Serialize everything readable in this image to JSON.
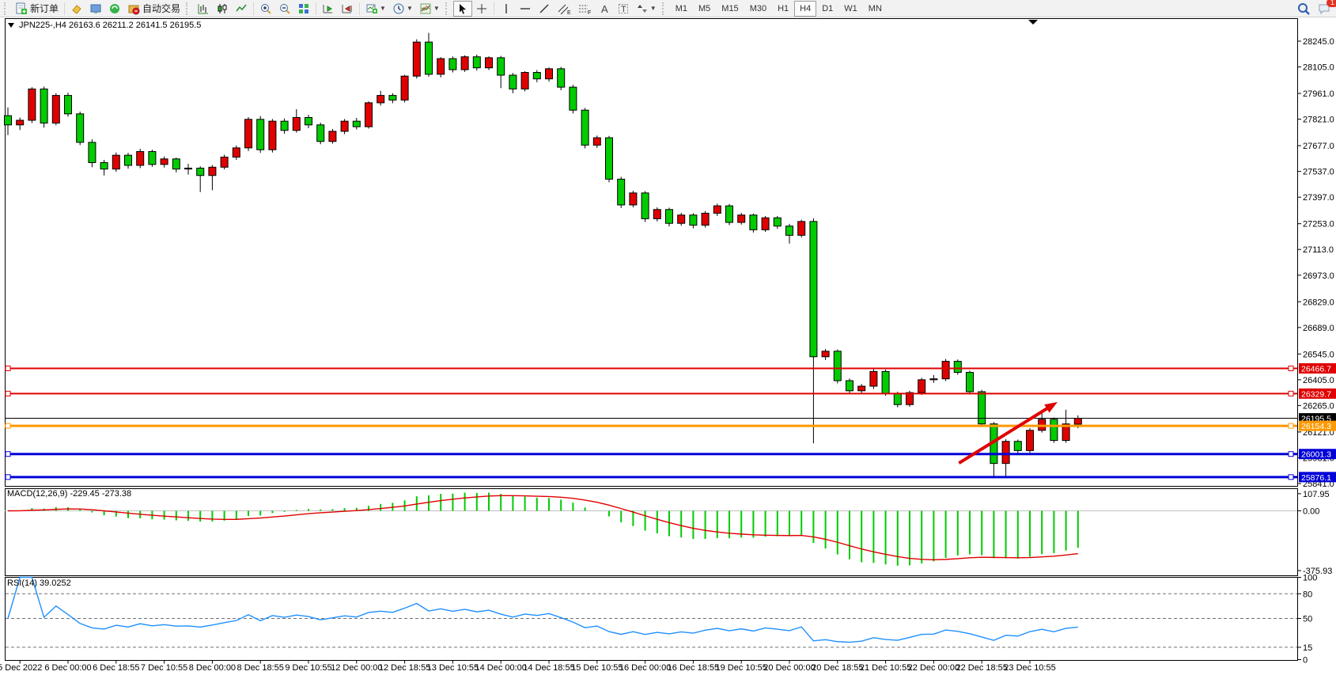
{
  "toolbar": {
    "new_order_label": "新订单",
    "autotrade_label": "自动交易",
    "timeframes": [
      "M1",
      "M5",
      "M15",
      "M30",
      "H1",
      "H4",
      "D1",
      "W1",
      "MN"
    ],
    "active_timeframe": "H4",
    "notification_badge": "1"
  },
  "chart_header": {
    "title_text": "JPN225-,H4  26163.6 26211.2 26141.5 26195.5"
  },
  "chart_data": {
    "type": "candlestick",
    "symbol": "JPN225-",
    "timeframe": "H4",
    "ohlc_display": {
      "open": "26163.6",
      "high": "26211.2",
      "low": "26141.5",
      "close": "26195.5"
    },
    "price_axis_ticks": [
      28245,
      28105,
      27961,
      27821,
      27677,
      27537,
      27397,
      27253,
      27113,
      26973,
      26829,
      26689,
      26545,
      26405,
      26265,
      26121,
      25981,
      25841
    ],
    "x_labels": {
      "labels": [
        "5 Dec 2022",
        "6 Dec 00:00",
        "6 Dec 18:55",
        "7 Dec 10:55",
        "8 Dec 00:00",
        "8 Dec 18:55",
        "9 Dec 10:55",
        "12 Dec 00:00",
        "12 Dec 18:55",
        "13 Dec 10:55",
        "14 Dec 00:00",
        "14 Dec 18:55",
        "15 Dec 10:55",
        "16 Dec 00:00",
        "16 Dec 18:55",
        "19 Dec 10:55",
        "20 Dec 00:00",
        "20 Dec 18:55",
        "21 Dec 10:55",
        "22 Dec 00:00",
        "22 Dec 18:55",
        "23 Dec 10:55"
      ],
      "first_candle_index": 1,
      "step": 4
    },
    "candles": [
      [
        27840,
        27885,
        27735,
        27790
      ],
      [
        27790,
        27830,
        27762,
        27815
      ],
      [
        27815,
        27995,
        27800,
        27985
      ],
      [
        27985,
        27998,
        27775,
        27800
      ],
      [
        27800,
        27962,
        27788,
        27950
      ],
      [
        27950,
        27965,
        27835,
        27850
      ],
      [
        27850,
        27862,
        27680,
        27695
      ],
      [
        27695,
        27712,
        27560,
        27585
      ],
      [
        27585,
        27600,
        27515,
        27550
      ],
      [
        27550,
        27640,
        27535,
        27625
      ],
      [
        27625,
        27638,
        27552,
        27570
      ],
      [
        27570,
        27660,
        27555,
        27645
      ],
      [
        27645,
        27655,
        27562,
        27575
      ],
      [
        27575,
        27618,
        27558,
        27605
      ],
      [
        27605,
        27612,
        27532,
        27550
      ],
      [
        27550,
        27578,
        27520,
        27555
      ],
      [
        27555,
        27565,
        27425,
        27515
      ],
      [
        27515,
        27572,
        27435,
        27560
      ],
      [
        27560,
        27628,
        27548,
        27615
      ],
      [
        27615,
        27678,
        27600,
        27665
      ],
      [
        27665,
        27832,
        27648,
        27820
      ],
      [
        27820,
        27838,
        27638,
        27655
      ],
      [
        27655,
        27822,
        27640,
        27810
      ],
      [
        27810,
        27825,
        27742,
        27760
      ],
      [
        27760,
        27875,
        27748,
        27830
      ],
      [
        27830,
        27845,
        27772,
        27790
      ],
      [
        27790,
        27802,
        27685,
        27700
      ],
      [
        27700,
        27768,
        27688,
        27755
      ],
      [
        27755,
        27822,
        27740,
        27810
      ],
      [
        27810,
        27828,
        27765,
        27780
      ],
      [
        27780,
        27918,
        27770,
        27910
      ],
      [
        27910,
        27975,
        27895,
        27950
      ],
      [
        27950,
        27962,
        27908,
        27925
      ],
      [
        27925,
        28062,
        27912,
        28055
      ],
      [
        28055,
        28255,
        28042,
        28240
      ],
      [
        28240,
        28290,
        28052,
        28065
      ],
      [
        28065,
        28158,
        28048,
        28150
      ],
      [
        28150,
        28162,
        28075,
        28090
      ],
      [
        28090,
        28168,
        28078,
        28160
      ],
      [
        28160,
        28172,
        28085,
        28100
      ],
      [
        28100,
        28162,
        28088,
        28155
      ],
      [
        28155,
        28165,
        27990,
        28060
      ],
      [
        28060,
        28072,
        27962,
        27985
      ],
      [
        27985,
        28082,
        27972,
        28075
      ],
      [
        28075,
        28088,
        28022,
        28040
      ],
      [
        28040,
        28102,
        28025,
        28095
      ],
      [
        28095,
        28105,
        27978,
        27995
      ],
      [
        27995,
        28008,
        27852,
        27870
      ],
      [
        27870,
        27882,
        27662,
        27680
      ],
      [
        27680,
        27732,
        27665,
        27720
      ],
      [
        27720,
        27730,
        27478,
        27495
      ],
      [
        27495,
        27508,
        27338,
        27355
      ],
      [
        27355,
        27432,
        27342,
        27420
      ],
      [
        27420,
        27430,
        27262,
        27280
      ],
      [
        27280,
        27342,
        27265,
        27330
      ],
      [
        27330,
        27340,
        27238,
        27255
      ],
      [
        27255,
        27312,
        27242,
        27300
      ],
      [
        27300,
        27310,
        27228,
        27245
      ],
      [
        27245,
        27322,
        27232,
        27310
      ],
      [
        27310,
        27362,
        27295,
        27350
      ],
      [
        27350,
        27360,
        27245,
        27260
      ],
      [
        27260,
        27312,
        27248,
        27300
      ],
      [
        27300,
        27308,
        27205,
        27220
      ],
      [
        27220,
        27295,
        27208,
        27285
      ],
      [
        27285,
        27295,
        27225,
        27240
      ],
      [
        27240,
        27252,
        27145,
        27190
      ],
      [
        27190,
        27275,
        27178,
        27265
      ],
      [
        27265,
        27282,
        26060,
        26530
      ],
      [
        26530,
        26572,
        26512,
        26560
      ],
      [
        26560,
        26570,
        26385,
        26400
      ],
      [
        26400,
        26412,
        26328,
        26345
      ],
      [
        26345,
        26382,
        26332,
        26370
      ],
      [
        26370,
        26462,
        26355,
        26450
      ],
      [
        26450,
        26460,
        26318,
        26330
      ],
      [
        26330,
        26340,
        26255,
        26270
      ],
      [
        26270,
        26345,
        26258,
        26335
      ],
      [
        26335,
        26415,
        26322,
        26405
      ],
      [
        26405,
        26430,
        26388,
        26410
      ],
      [
        26410,
        26518,
        26398,
        26505
      ],
      [
        26505,
        26515,
        26432,
        26445
      ],
      [
        26445,
        26455,
        26325,
        26340
      ],
      [
        26340,
        26350,
        26148,
        26165
      ],
      [
        26165,
        26175,
        25876,
        25950
      ],
      [
        25950,
        26082,
        25882,
        26070
      ],
      [
        26070,
        26080,
        26005,
        26020
      ],
      [
        26020,
        26142,
        26008,
        26130
      ],
      [
        26130,
        26232,
        26118,
        26190
      ],
      [
        26190,
        26200,
        26062,
        26075
      ],
      [
        26075,
        26242,
        26062,
        26165
      ],
      [
        26163.6,
        26211.2,
        26141.5,
        26195.5
      ]
    ],
    "price_lines": [
      {
        "price": 26466.7,
        "color": "#e00000",
        "width": 2,
        "handles": true
      },
      {
        "price": 26329.7,
        "color": "#e00000",
        "width": 2,
        "handles": true
      },
      {
        "price": 26195.5,
        "color": "#000000",
        "width": 1,
        "handles": false
      },
      {
        "price": 26154.3,
        "color": "#ff9900",
        "width": 3,
        "handles": true
      },
      {
        "price": 26001.3,
        "color": "#0000d8",
        "width": 3,
        "handles": true
      },
      {
        "price": 25876.1,
        "color": "#0000d8",
        "width": 3,
        "handles": true
      }
    ],
    "macd": {
      "label": "MACD(12,26,9) -229.45 -273.38",
      "fast": 12,
      "slow": 26,
      "signal_period": 9,
      "value": -229.45,
      "signal_value": -273.38,
      "axis_ticks": [
        {
          "text": "107.95",
          "value": 107.95
        },
        {
          "text": "0.00",
          "value": 0
        },
        {
          "text": "-375.93",
          "value": -375.93
        }
      ]
    },
    "rsi": {
      "label": "RSI(14) 39.0252",
      "period": 14,
      "value": 39.0252,
      "levels": [
        80,
        50,
        15
      ],
      "axis_ticks": [
        {
          "text": "100",
          "value": 100
        },
        {
          "text": "80",
          "value": 80
        },
        {
          "text": "50",
          "value": 50
        },
        {
          "text": "15",
          "value": 15
        },
        {
          "text": "0",
          "value": 0
        }
      ]
    },
    "arrow_annotation": {
      "x1_candle": 79.1,
      "y1_price": 25952,
      "x2_candle": 87.3,
      "y2_price": 26284,
      "color": "#e00000"
    },
    "colors": {
      "bull": "#e00000",
      "bear": "#00cc00",
      "candle_outline": "#000000",
      "wick": "#000000",
      "macd_histogram": "#00cc00",
      "macd_signal": "#e00000",
      "macd_zero": "#c0c0c0",
      "rsi": "#1e90ff",
      "level_dash": "#707070",
      "background": "#ffffff",
      "panel_border": "#000000"
    }
  }
}
